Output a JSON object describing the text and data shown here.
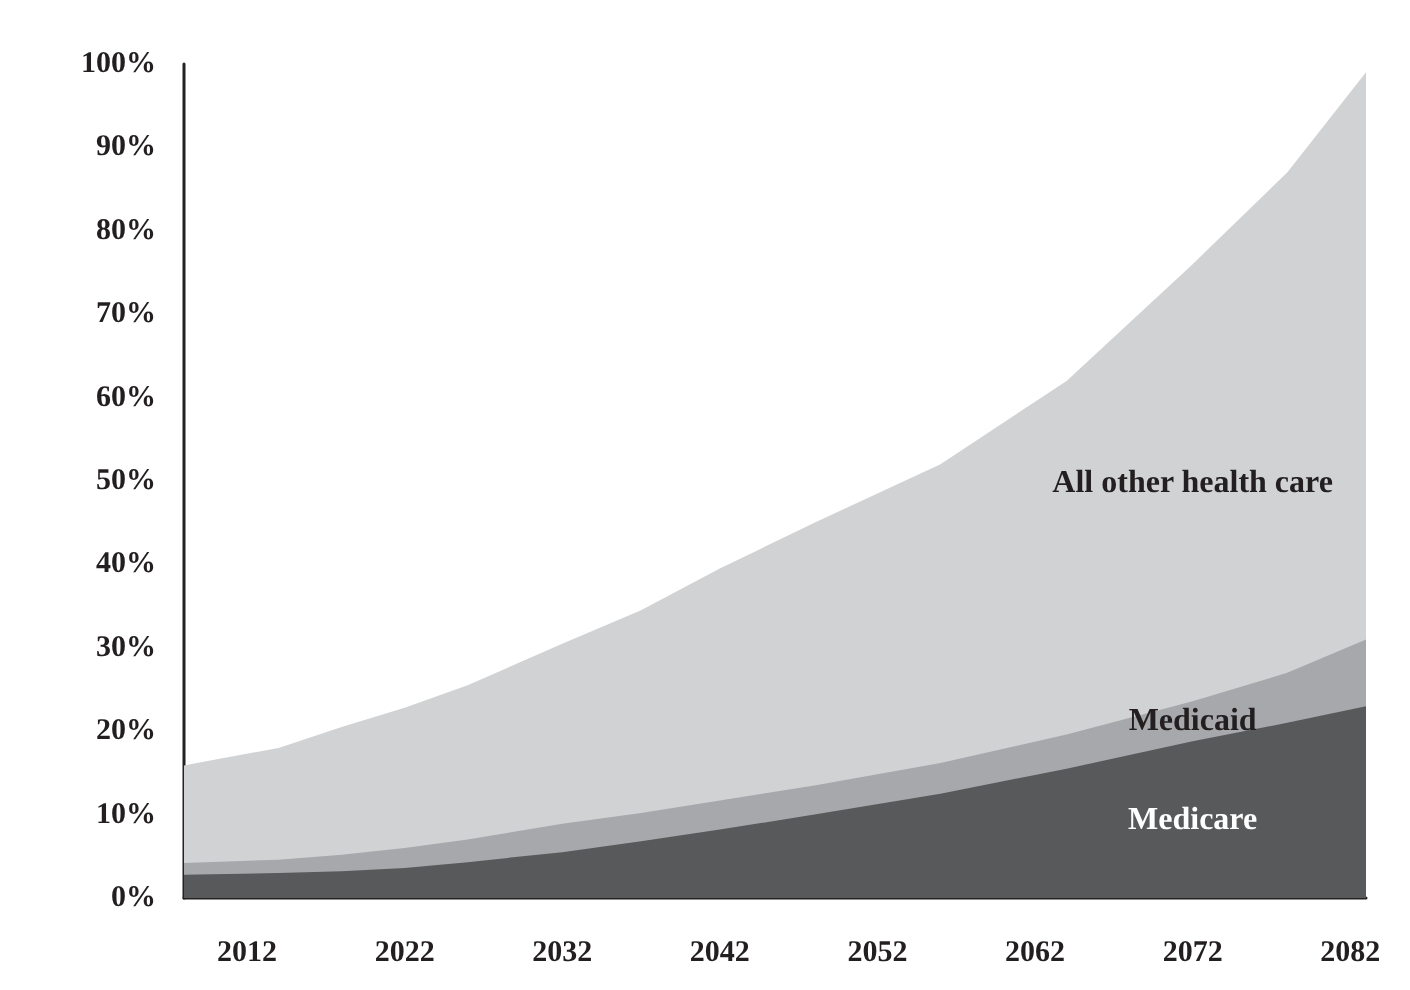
{
  "chart_data": {
    "type": "area",
    "stacked": true,
    "x": [
      2008,
      2014,
      2018,
      2022,
      2026,
      2032,
      2037,
      2042,
      2048,
      2056,
      2064,
      2072,
      2078,
      2083
    ],
    "series": [
      {
        "name": "Medicare",
        "color": "#58595b",
        "values": [
          2.8,
          3.0,
          3.2,
          3.6,
          4.3,
          5.5,
          6.8,
          8.2,
          10,
          12.5,
          15.5,
          18.8,
          21,
          23
        ]
      },
      {
        "name": "Medicaid",
        "color": "#a7a8ab",
        "values": [
          1.4,
          1.6,
          2.0,
          2.4,
          2.7,
          3.4,
          3.4,
          3.5,
          3.5,
          3.7,
          4.1,
          4.8,
          6,
          8
        ]
      },
      {
        "name": "All other health care",
        "color": "#d1d2d4",
        "values": [
          11.7,
          13.4,
          15.3,
          16.8,
          18.5,
          21.6,
          24.3,
          27.8,
          31.5,
          35.8,
          42.4,
          52.4,
          60,
          68
        ]
      }
    ],
    "xlim": [
      2008,
      2083
    ],
    "xticks": [
      2012,
      2022,
      2032,
      2042,
      2052,
      2062,
      2072,
      2082
    ],
    "ylim": [
      0,
      100
    ],
    "yticks": [
      {
        "value": 0,
        "label": "0%"
      },
      {
        "value": 10,
        "label": "10%"
      },
      {
        "value": 20,
        "label": "20%"
      },
      {
        "value": 30,
        "label": "30%"
      },
      {
        "value": 40,
        "label": "40%"
      },
      {
        "value": 50,
        "label": "50%"
      },
      {
        "value": 60,
        "label": "60%"
      },
      {
        "value": 70,
        "label": "70%"
      },
      {
        "value": 80,
        "label": "80%"
      },
      {
        "value": 90,
        "label": "90%"
      },
      {
        "value": 100,
        "label": "100%"
      }
    ],
    "grid": false
  }
}
